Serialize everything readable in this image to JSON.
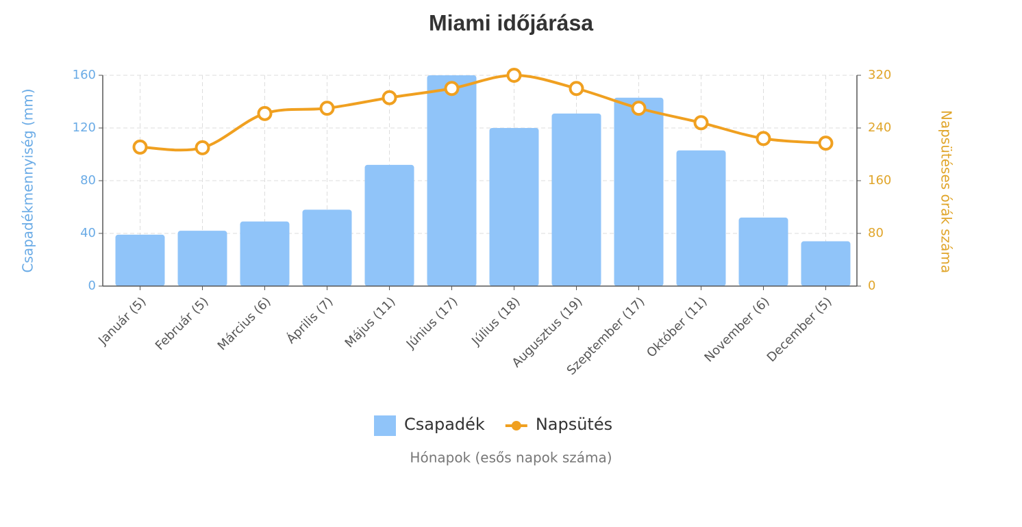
{
  "chart_data": {
    "type": "bar",
    "title": "Miami időjárása",
    "x_label": "Hónapok (esős napok száma)",
    "y_label": "Csapadékmennyiség (mm)",
    "y2_label": "Napsütéses órák száma",
    "categories": [
      "Január (5)",
      "Február (5)",
      "Március (6)",
      "Április (7)",
      "Május (11)",
      "Június (17)",
      "Július (18)",
      "Augusztus (19)",
      "Szeptember (17)",
      "Október (11)",
      "November (6)",
      "December (5)"
    ],
    "series": [
      {
        "name": "Csapadék",
        "type": "bar",
        "axis": "y",
        "color": "#90c4f9",
        "values": [
          39,
          42,
          49,
          58,
          92,
          160,
          120,
          131,
          143,
          103,
          52,
          34
        ]
      },
      {
        "name": "Napsütés",
        "type": "line",
        "axis": "y2",
        "color": "#f0a020",
        "values": [
          211,
          210,
          262,
          270,
          286,
          300,
          320,
          300,
          270,
          248,
          224,
          217
        ]
      }
    ],
    "ylim": [
      0,
      160
    ],
    "yticks": [
      0,
      40,
      80,
      120,
      160
    ],
    "y2lim": [
      0,
      320
    ],
    "y2ticks": [
      0,
      80,
      160,
      240,
      320
    ],
    "grid": true
  }
}
